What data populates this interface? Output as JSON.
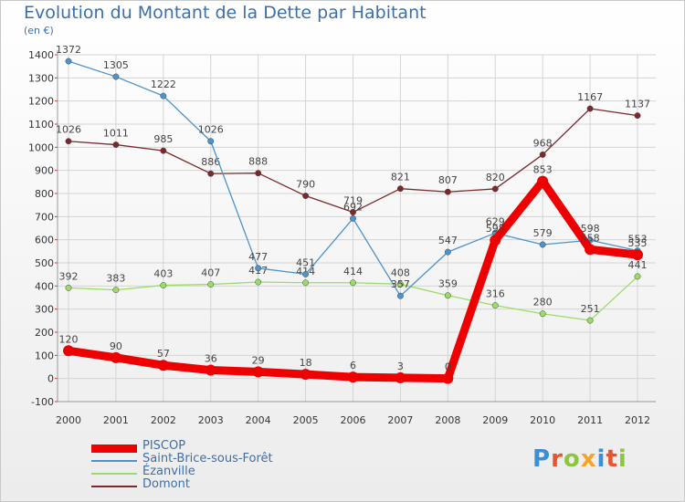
{
  "title": "Evolution du Montant de la Dette par Habitant",
  "unit": "(en €)",
  "logo": {
    "text": "Proxiti",
    "letter_colors": [
      "#3a8fd6",
      "#e8542e",
      "#8cc63e",
      "#f5a623",
      "#3a8fd6",
      "#e8542e",
      "#8cc63e"
    ]
  },
  "chart_data": {
    "type": "line",
    "title": "Evolution du Montant de la Dette par Habitant",
    "ylabel": "(en €)",
    "xlabel": "",
    "x": [
      2000,
      2001,
      2002,
      2003,
      2004,
      2005,
      2006,
      2007,
      2008,
      2009,
      2010,
      2011,
      2012
    ],
    "ylim": [
      -100,
      1400
    ],
    "yticks": [
      -100,
      0,
      100,
      200,
      300,
      400,
      500,
      600,
      700,
      800,
      900,
      1000,
      1100,
      1200,
      1300,
      1400
    ],
    "grid": true,
    "legend_position": "bottom-left",
    "series": [
      {
        "name": "PISCOP",
        "color": "#ee0000",
        "values": [
          120,
          90,
          57,
          36,
          29,
          18,
          6,
          3,
          0,
          598,
          853,
          558,
          535
        ]
      },
      {
        "name": "Saint-Brice-sous-Forêt",
        "color": "#4f93c8",
        "values": [
          1372,
          1305,
          1222,
          1026,
          477,
          451,
          692,
          357,
          547,
          629,
          579,
          598,
          553
        ]
      },
      {
        "name": "Ézanville",
        "color": "#99dd66",
        "values": [
          392,
          383,
          403,
          407,
          417,
          414,
          414,
          408,
          359,
          316,
          280,
          251,
          441
        ]
      },
      {
        "name": "Domont",
        "color": "#7a2a2a",
        "values": [
          1026,
          1011,
          985,
          886,
          888,
          790,
          719,
          821,
          807,
          820,
          968,
          1167,
          1137
        ]
      }
    ]
  }
}
